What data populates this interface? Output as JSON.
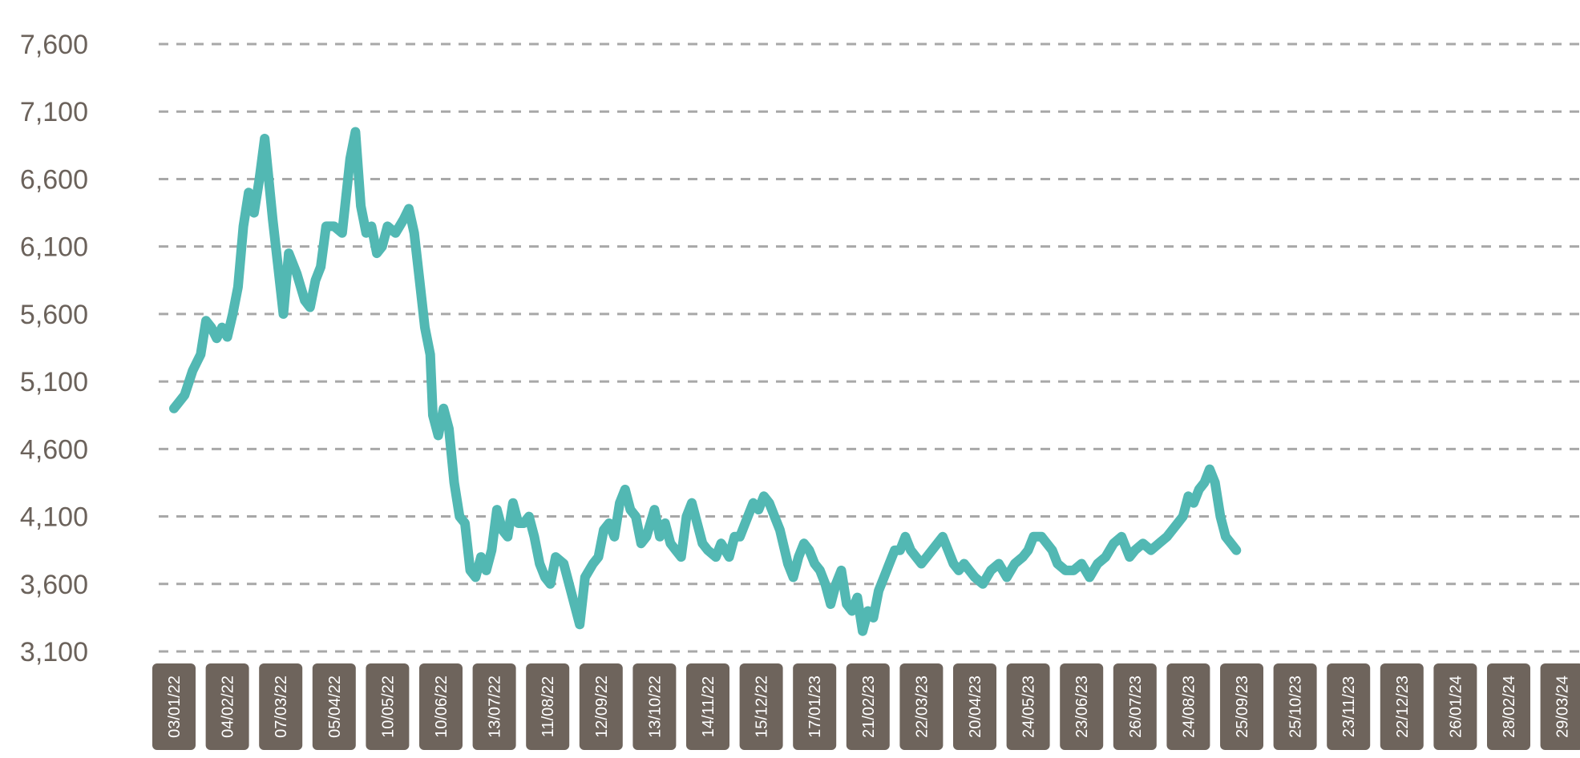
{
  "chart_data": {
    "type": "line",
    "title": "",
    "xlabel": "",
    "ylabel": "",
    "ylim": [
      3100,
      7600
    ],
    "grid": true,
    "legend": "none",
    "line_color": "#52b8b3",
    "tick_box_color": "#6e645c",
    "axis_text_color": "#6b625b",
    "y_ticks": [
      "7,600",
      "7,100",
      "6,600",
      "6,100",
      "5,600",
      "5,100",
      "4,600",
      "4,100",
      "3,600",
      "3,100"
    ],
    "x_ticks": [
      "03/01/22",
      "04/02/22",
      "07/03/22",
      "05/04/22",
      "10/05/22",
      "10/06/22",
      "13/07/22",
      "11/08/22",
      "12/09/22",
      "13/10/22",
      "14/11/22",
      "15/12/22",
      "17/01/23",
      "21/02/23",
      "22/03/23",
      "20/04/23",
      "24/05/23",
      "23/06/23",
      "26/07/23",
      "24/08/23",
      "25/09/23",
      "25/10/23",
      "23/11/23",
      "22/12/23",
      "26/01/24",
      "28/02/24",
      "29/03/24"
    ],
    "series": [
      {
        "values": [
          [
            0.0,
            4900
          ],
          [
            0.1,
            4950
          ],
          [
            0.2,
            5000
          ],
          [
            0.35,
            5180
          ],
          [
            0.5,
            5300
          ],
          [
            0.6,
            5550
          ],
          [
            0.7,
            5500
          ],
          [
            0.8,
            5420
          ],
          [
            0.9,
            5500
          ],
          [
            1.0,
            5430
          ],
          [
            1.1,
            5600
          ],
          [
            1.2,
            5800
          ],
          [
            1.3,
            6250
          ],
          [
            1.4,
            6500
          ],
          [
            1.5,
            6350
          ],
          [
            1.6,
            6600
          ],
          [
            1.7,
            6900
          ],
          [
            1.85,
            6300
          ],
          [
            1.95,
            5950
          ],
          [
            2.05,
            5600
          ],
          [
            2.15,
            6050
          ],
          [
            2.3,
            5900
          ],
          [
            2.45,
            5700
          ],
          [
            2.55,
            5650
          ],
          [
            2.65,
            5850
          ],
          [
            2.75,
            5950
          ],
          [
            2.85,
            6250
          ],
          [
            3.0,
            6250
          ],
          [
            3.15,
            6200
          ],
          [
            3.3,
            6750
          ],
          [
            3.4,
            6950
          ],
          [
            3.5,
            6400
          ],
          [
            3.6,
            6200
          ],
          [
            3.7,
            6250
          ],
          [
            3.8,
            6050
          ],
          [
            3.9,
            6100
          ],
          [
            4.0,
            6250
          ],
          [
            4.15,
            6200
          ],
          [
            4.3,
            6300
          ],
          [
            4.4,
            6380
          ],
          [
            4.5,
            6200
          ],
          [
            4.6,
            5850
          ],
          [
            4.7,
            5500
          ],
          [
            4.8,
            5300
          ],
          [
            4.85,
            4850
          ],
          [
            4.95,
            4700
          ],
          [
            5.05,
            4900
          ],
          [
            5.15,
            4750
          ],
          [
            5.25,
            4350
          ],
          [
            5.35,
            4100
          ],
          [
            5.45,
            4050
          ],
          [
            5.55,
            3700
          ],
          [
            5.65,
            3650
          ],
          [
            5.75,
            3800
          ],
          [
            5.85,
            3700
          ],
          [
            5.95,
            3850
          ],
          [
            6.05,
            4150
          ],
          [
            6.15,
            4000
          ],
          [
            6.25,
            3950
          ],
          [
            6.35,
            4200
          ],
          [
            6.45,
            4050
          ],
          [
            6.55,
            4050
          ],
          [
            6.65,
            4100
          ],
          [
            6.75,
            3950
          ],
          [
            6.85,
            3750
          ],
          [
            6.95,
            3650
          ],
          [
            7.05,
            3600
          ],
          [
            7.15,
            3800
          ],
          [
            7.3,
            3750
          ],
          [
            7.5,
            3450
          ],
          [
            7.6,
            3300
          ],
          [
            7.7,
            3650
          ],
          [
            7.85,
            3750
          ],
          [
            7.95,
            3800
          ],
          [
            8.05,
            4000
          ],
          [
            8.15,
            4050
          ],
          [
            8.25,
            3950
          ],
          [
            8.35,
            4200
          ],
          [
            8.45,
            4300
          ],
          [
            8.55,
            4150
          ],
          [
            8.65,
            4100
          ],
          [
            8.75,
            3900
          ],
          [
            8.85,
            3950
          ],
          [
            9.0,
            4150
          ],
          [
            9.1,
            3950
          ],
          [
            9.2,
            4050
          ],
          [
            9.3,
            3900
          ],
          [
            9.4,
            3850
          ],
          [
            9.5,
            3800
          ],
          [
            9.6,
            4100
          ],
          [
            9.7,
            4200
          ],
          [
            9.8,
            4050
          ],
          [
            9.9,
            3900
          ],
          [
            10.0,
            3850
          ],
          [
            10.15,
            3800
          ],
          [
            10.25,
            3900
          ],
          [
            10.4,
            3800
          ],
          [
            10.5,
            3950
          ],
          [
            10.6,
            3950
          ],
          [
            10.75,
            4100
          ],
          [
            10.85,
            4200
          ],
          [
            10.95,
            4150
          ],
          [
            11.05,
            4250
          ],
          [
            11.15,
            4200
          ],
          [
            11.25,
            4100
          ],
          [
            11.35,
            4000
          ],
          [
            11.5,
            3750
          ],
          [
            11.6,
            3650
          ],
          [
            11.7,
            3800
          ],
          [
            11.8,
            3900
          ],
          [
            11.9,
            3850
          ],
          [
            12.0,
            3750
          ],
          [
            12.1,
            3700
          ],
          [
            12.2,
            3600
          ],
          [
            12.3,
            3450
          ],
          [
            12.4,
            3600
          ],
          [
            12.5,
            3700
          ],
          [
            12.6,
            3450
          ],
          [
            12.7,
            3400
          ],
          [
            12.8,
            3500
          ],
          [
            12.9,
            3250
          ],
          [
            13.0,
            3400
          ],
          [
            13.1,
            3350
          ],
          [
            13.2,
            3550
          ],
          [
            13.3,
            3650
          ],
          [
            13.4,
            3750
          ],
          [
            13.5,
            3850
          ],
          [
            13.6,
            3850
          ],
          [
            13.7,
            3950
          ],
          [
            13.8,
            3850
          ],
          [
            13.9,
            3800
          ],
          [
            14.0,
            3750
          ],
          [
            14.1,
            3800
          ],
          [
            14.2,
            3850
          ],
          [
            14.3,
            3900
          ],
          [
            14.4,
            3950
          ],
          [
            14.5,
            3850
          ],
          [
            14.6,
            3750
          ],
          [
            14.7,
            3700
          ],
          [
            14.8,
            3750
          ],
          [
            14.9,
            3700
          ],
          [
            15.0,
            3650
          ],
          [
            15.15,
            3600
          ],
          [
            15.3,
            3700
          ],
          [
            15.45,
            3750
          ],
          [
            15.6,
            3650
          ],
          [
            15.75,
            3750
          ],
          [
            15.9,
            3800
          ],
          [
            16.0,
            3850
          ],
          [
            16.1,
            3950
          ],
          [
            16.25,
            3950
          ],
          [
            16.35,
            3900
          ],
          [
            16.45,
            3850
          ],
          [
            16.55,
            3750
          ],
          [
            16.7,
            3700
          ],
          [
            16.85,
            3700
          ],
          [
            17.0,
            3750
          ],
          [
            17.15,
            3650
          ],
          [
            17.3,
            3750
          ],
          [
            17.45,
            3800
          ],
          [
            17.6,
            3900
          ],
          [
            17.75,
            3950
          ],
          [
            17.9,
            3800
          ],
          [
            18.0,
            3850
          ],
          [
            18.15,
            3900
          ],
          [
            18.3,
            3850
          ],
          [
            18.45,
            3900
          ],
          [
            18.6,
            3950
          ],
          [
            18.7,
            4000
          ],
          [
            18.8,
            4050
          ],
          [
            18.9,
            4100
          ],
          [
            19.0,
            4250
          ],
          [
            19.1,
            4200
          ],
          [
            19.2,
            4300
          ],
          [
            19.3,
            4350
          ],
          [
            19.4,
            4450
          ],
          [
            19.5,
            4350
          ],
          [
            19.6,
            4100
          ],
          [
            19.7,
            3950
          ],
          [
            19.8,
            3900
          ],
          [
            19.9,
            3850
          ]
        ]
      }
    ]
  }
}
